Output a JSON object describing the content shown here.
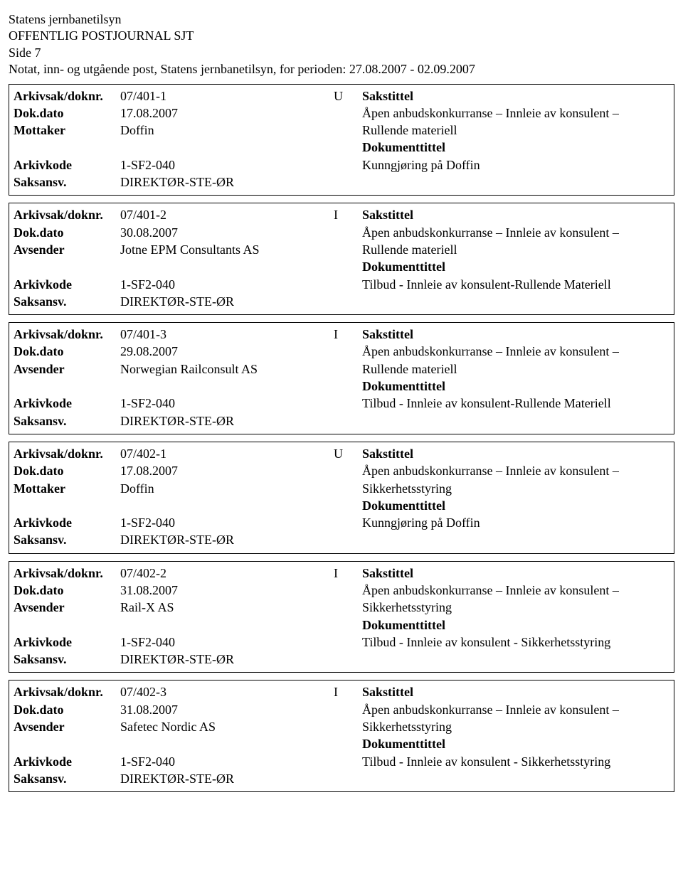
{
  "header": {
    "line1": "Statens jernbanetilsyn",
    "line2": "OFFENTLIG POSTJOURNAL SJT",
    "line3": "Side 7",
    "line4": "Notat, inn- og utgående post, Statens jernbanetilsyn, for perioden: 27.08.2007 - 02.09.2007"
  },
  "labels": {
    "arkivsak": "Arkivsak/doknr.",
    "dokdato": "Dok.dato",
    "mottaker": "Mottaker",
    "avsender": "Avsender",
    "arkivkode": "Arkivkode",
    "saksansv": "Saksansv.",
    "sakstittel": "Sakstittel",
    "dokumenttittel": "Dokumenttittel"
  },
  "records": [
    {
      "doknr": "07/401-1",
      "dir": "U",
      "dato": "17.08.2007",
      "party_label": "Mottaker",
      "party": "Doffin",
      "arkivkode": "1-SF2-040",
      "saksansv": "DIREKTØR-STE-ØR",
      "saks_line1": "Åpen anbudskonkurranse – Innleie av konsulent –",
      "saks_line2": "Rullende materiell",
      "doktittel": "Kunngjøring på Doffin"
    },
    {
      "doknr": "07/401-2",
      "dir": "I",
      "dato": "30.08.2007",
      "party_label": "Avsender",
      "party": "Jotne EPM Consultants AS",
      "arkivkode": "1-SF2-040",
      "saksansv": "DIREKTØR-STE-ØR",
      "saks_line1": "Åpen anbudskonkurranse – Innleie av konsulent –",
      "saks_line2": "Rullende materiell",
      "doktittel": "Tilbud - Innleie av konsulent-Rullende Materiell"
    },
    {
      "doknr": "07/401-3",
      "dir": "I",
      "dato": "29.08.2007",
      "party_label": "Avsender",
      "party": "Norwegian Railconsult AS",
      "arkivkode": "1-SF2-040",
      "saksansv": "DIREKTØR-STE-ØR",
      "saks_line1": "Åpen anbudskonkurranse – Innleie av konsulent –",
      "saks_line2": "Rullende materiell",
      "doktittel": "Tilbud - Innleie av konsulent-Rullende Materiell"
    },
    {
      "doknr": "07/402-1",
      "dir": "U",
      "dato": "17.08.2007",
      "party_label": "Mottaker",
      "party": "Doffin",
      "arkivkode": "1-SF2-040",
      "saksansv": "DIREKTØR-STE-ØR",
      "saks_line1": "Åpen anbudskonkurranse – Innleie av konsulent –",
      "saks_line2": "Sikkerhetsstyring",
      "doktittel": "Kunngjøring på Doffin"
    },
    {
      "doknr": "07/402-2",
      "dir": "I",
      "dato": "31.08.2007",
      "party_label": "Avsender",
      "party": "Rail-X AS",
      "arkivkode": "1-SF2-040",
      "saksansv": "DIREKTØR-STE-ØR",
      "saks_line1": "Åpen anbudskonkurranse – Innleie av konsulent –",
      "saks_line2": "Sikkerhetsstyring",
      "doktittel": "Tilbud - Innleie av konsulent - Sikkerhetsstyring"
    },
    {
      "doknr": "07/402-3",
      "dir": "I",
      "dato": "31.08.2007",
      "party_label": "Avsender",
      "party": "Safetec Nordic AS",
      "arkivkode": "1-SF2-040",
      "saksansv": "DIREKTØR-STE-ØR",
      "saks_line1": "Åpen anbudskonkurranse – Innleie av konsulent –",
      "saks_line2": "Sikkerhetsstyring",
      "doktittel": "Tilbud - Innleie av konsulent - Sikkerhetsstyring"
    }
  ]
}
